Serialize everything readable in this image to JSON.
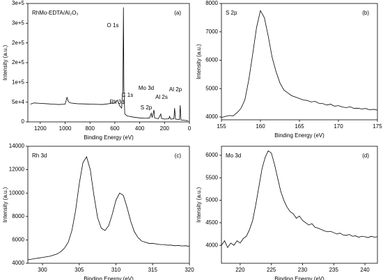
{
  "chart_data": [
    {
      "type": "line",
      "xlabel": "Binding Energy (eV)",
      "ylabel": "Intensity (a.u.)",
      "color": "#000000",
      "annotations": [
        "RhMo-EDTA/Al₂O₃",
        "(a)",
        "O 1s",
        "C 1s",
        "Rh 3d",
        "Mo 3d",
        "S 2p",
        "Al 2s",
        "Al 2p"
      ],
      "xlim": [
        1300,
        0
      ],
      "xticks": [
        0,
        200,
        400,
        600,
        800,
        1000,
        1200
      ],
      "ylim": [
        0,
        300000
      ],
      "yticks": [
        0,
        {
          "value": 50000,
          "label": "5e+4"
        },
        {
          "value": 100000,
          "label": "1e+5"
        },
        {
          "value": 150000,
          "label": "2e+5"
        },
        {
          "value": 200000,
          "label": "2e+5"
        },
        {
          "value": 250000,
          "label": "3e+5"
        },
        {
          "value": 300000,
          "label": "3e+5"
        }
      ],
      "x": [
        1280,
        1250,
        1200,
        1150,
        1100,
        1050,
        1000,
        985,
        975,
        960,
        900,
        800,
        700,
        600,
        580,
        560,
        545,
        535,
        531,
        527,
        520,
        500,
        450,
        400,
        350,
        320,
        307,
        300,
        285,
        280,
        250,
        230,
        225,
        200,
        165,
        160,
        150,
        125,
        119,
        112,
        80,
        74,
        68,
        40,
        10
      ],
      "values": [
        45000,
        48000,
        47000,
        46000,
        45000,
        44000,
        45000,
        62000,
        52000,
        48000,
        46000,
        45000,
        44000,
        48000,
        55000,
        40000,
        35000,
        90000,
        290000,
        80000,
        20000,
        15000,
        12000,
        10000,
        9000,
        10000,
        22000,
        11000,
        30000,
        10000,
        8000,
        20000,
        9000,
        7000,
        8000,
        14000,
        7000,
        8000,
        35000,
        7000,
        6000,
        42000,
        5000,
        4000,
        3000
      ]
    },
    {
      "type": "line",
      "xlabel": "Binding Energy (eV)",
      "ylabel": "Intensity (a.u.)",
      "color": "#000000",
      "annotations": [
        "S 2p",
        "(b)"
      ],
      "xlim": [
        155,
        175
      ],
      "xticks": [
        155,
        160,
        165,
        170,
        175
      ],
      "ylim": [
        3900,
        8000
      ],
      "yticks": [
        4000,
        5000,
        6000,
        7000,
        8000
      ],
      "x": [
        155,
        155.5,
        156,
        156.5,
        157,
        157.5,
        158,
        158.5,
        159,
        159.5,
        160,
        160.5,
        161,
        161.5,
        162,
        162.5,
        163,
        163.5,
        164,
        164.5,
        165,
        165.5,
        166,
        166.5,
        167,
        167.5,
        168,
        168.5,
        169,
        169.5,
        170,
        170.5,
        171,
        171.5,
        172,
        172.5,
        173,
        173.5,
        174,
        174.5,
        175
      ],
      "values": [
        3980,
        4020,
        4050,
        4040,
        4150,
        4300,
        4600,
        5300,
        6200,
        7150,
        7750,
        7500,
        6850,
        6100,
        5600,
        5200,
        4950,
        4850,
        4750,
        4700,
        4650,
        4600,
        4580,
        4530,
        4550,
        4480,
        4470,
        4420,
        4450,
        4380,
        4400,
        4350,
        4330,
        4360,
        4300,
        4310,
        4280,
        4300,
        4250,
        4270,
        4240
      ]
    },
    {
      "type": "line",
      "xlabel": "Binding Energy (eV)",
      "ylabel": "Intensity (a.u.)",
      "color": "#000000",
      "annotations": [
        "Rh 3d",
        "(c)"
      ],
      "xlim": [
        298,
        320
      ],
      "xticks": [
        300,
        305,
        310,
        315,
        320
      ],
      "ylim": [
        4000,
        14000
      ],
      "yticks": [
        4000,
        6000,
        8000,
        10000,
        12000,
        14000
      ],
      "x": [
        298,
        298.5,
        299,
        299.5,
        300,
        300.5,
        301,
        301.5,
        302,
        302.5,
        303,
        303.5,
        304,
        304.5,
        305,
        305.5,
        306,
        306.5,
        307,
        307.5,
        308,
        308.5,
        309,
        309.5,
        310,
        310.5,
        311,
        311.5,
        312,
        312.5,
        313,
        313.5,
        314,
        314.5,
        315,
        315.5,
        316,
        316.5,
        317,
        317.5,
        318,
        318.5,
        319,
        319.5,
        320
      ],
      "values": [
        4300,
        4350,
        4400,
        4450,
        4500,
        4550,
        4600,
        4700,
        4800,
        5000,
        5300,
        5800,
        6800,
        8500,
        10800,
        12600,
        13100,
        12000,
        9800,
        7900,
        7000,
        6800,
        7200,
        8200,
        9400,
        10000,
        9800,
        8800,
        7600,
        6700,
        6200,
        5900,
        5800,
        5700,
        5700,
        5650,
        5600,
        5600,
        5550,
        5550,
        5500,
        5520,
        5480,
        5500,
        5450
      ]
    },
    {
      "type": "line",
      "xlabel": "Binding Energy (eV)",
      "ylabel": "Intensity (a.u.)",
      "color": "#000000",
      "annotations": [
        "Mo 3d",
        "(d)"
      ],
      "xlim": [
        217,
        242
      ],
      "xticks": [
        220,
        225,
        230,
        235,
        240
      ],
      "ylim": [
        3600,
        6200
      ],
      "yticks": [
        4000,
        4500,
        5000,
        5500,
        6000
      ],
      "x": [
        217,
        217.5,
        218,
        218.5,
        219,
        219.5,
        220,
        220.5,
        221,
        221.5,
        222,
        222.5,
        223,
        223.5,
        224,
        224.5,
        225,
        225.5,
        226,
        226.5,
        227,
        227.5,
        228,
        228.5,
        229,
        229.5,
        230,
        230.5,
        231,
        231.5,
        232,
        232.5,
        233,
        233.5,
        234,
        234.5,
        235,
        235.5,
        236,
        236.5,
        237,
        237.5,
        238,
        238.5,
        239,
        239.5,
        240,
        240.5,
        241,
        241.5,
        242
      ],
      "values": [
        4000,
        4100,
        3950,
        4050,
        4000,
        4100,
        4050,
        4150,
        4200,
        4350,
        4550,
        4900,
        5300,
        5700,
        5950,
        6100,
        6050,
        5800,
        5500,
        5200,
        5000,
        4850,
        4750,
        4700,
        4600,
        4650,
        4550,
        4500,
        4450,
        4480,
        4400,
        4380,
        4350,
        4320,
        4300,
        4310,
        4280,
        4250,
        4270,
        4230,
        4220,
        4240,
        4200,
        4210,
        4180,
        4200,
        4190,
        4170,
        4200,
        4180,
        4190
      ]
    }
  ]
}
